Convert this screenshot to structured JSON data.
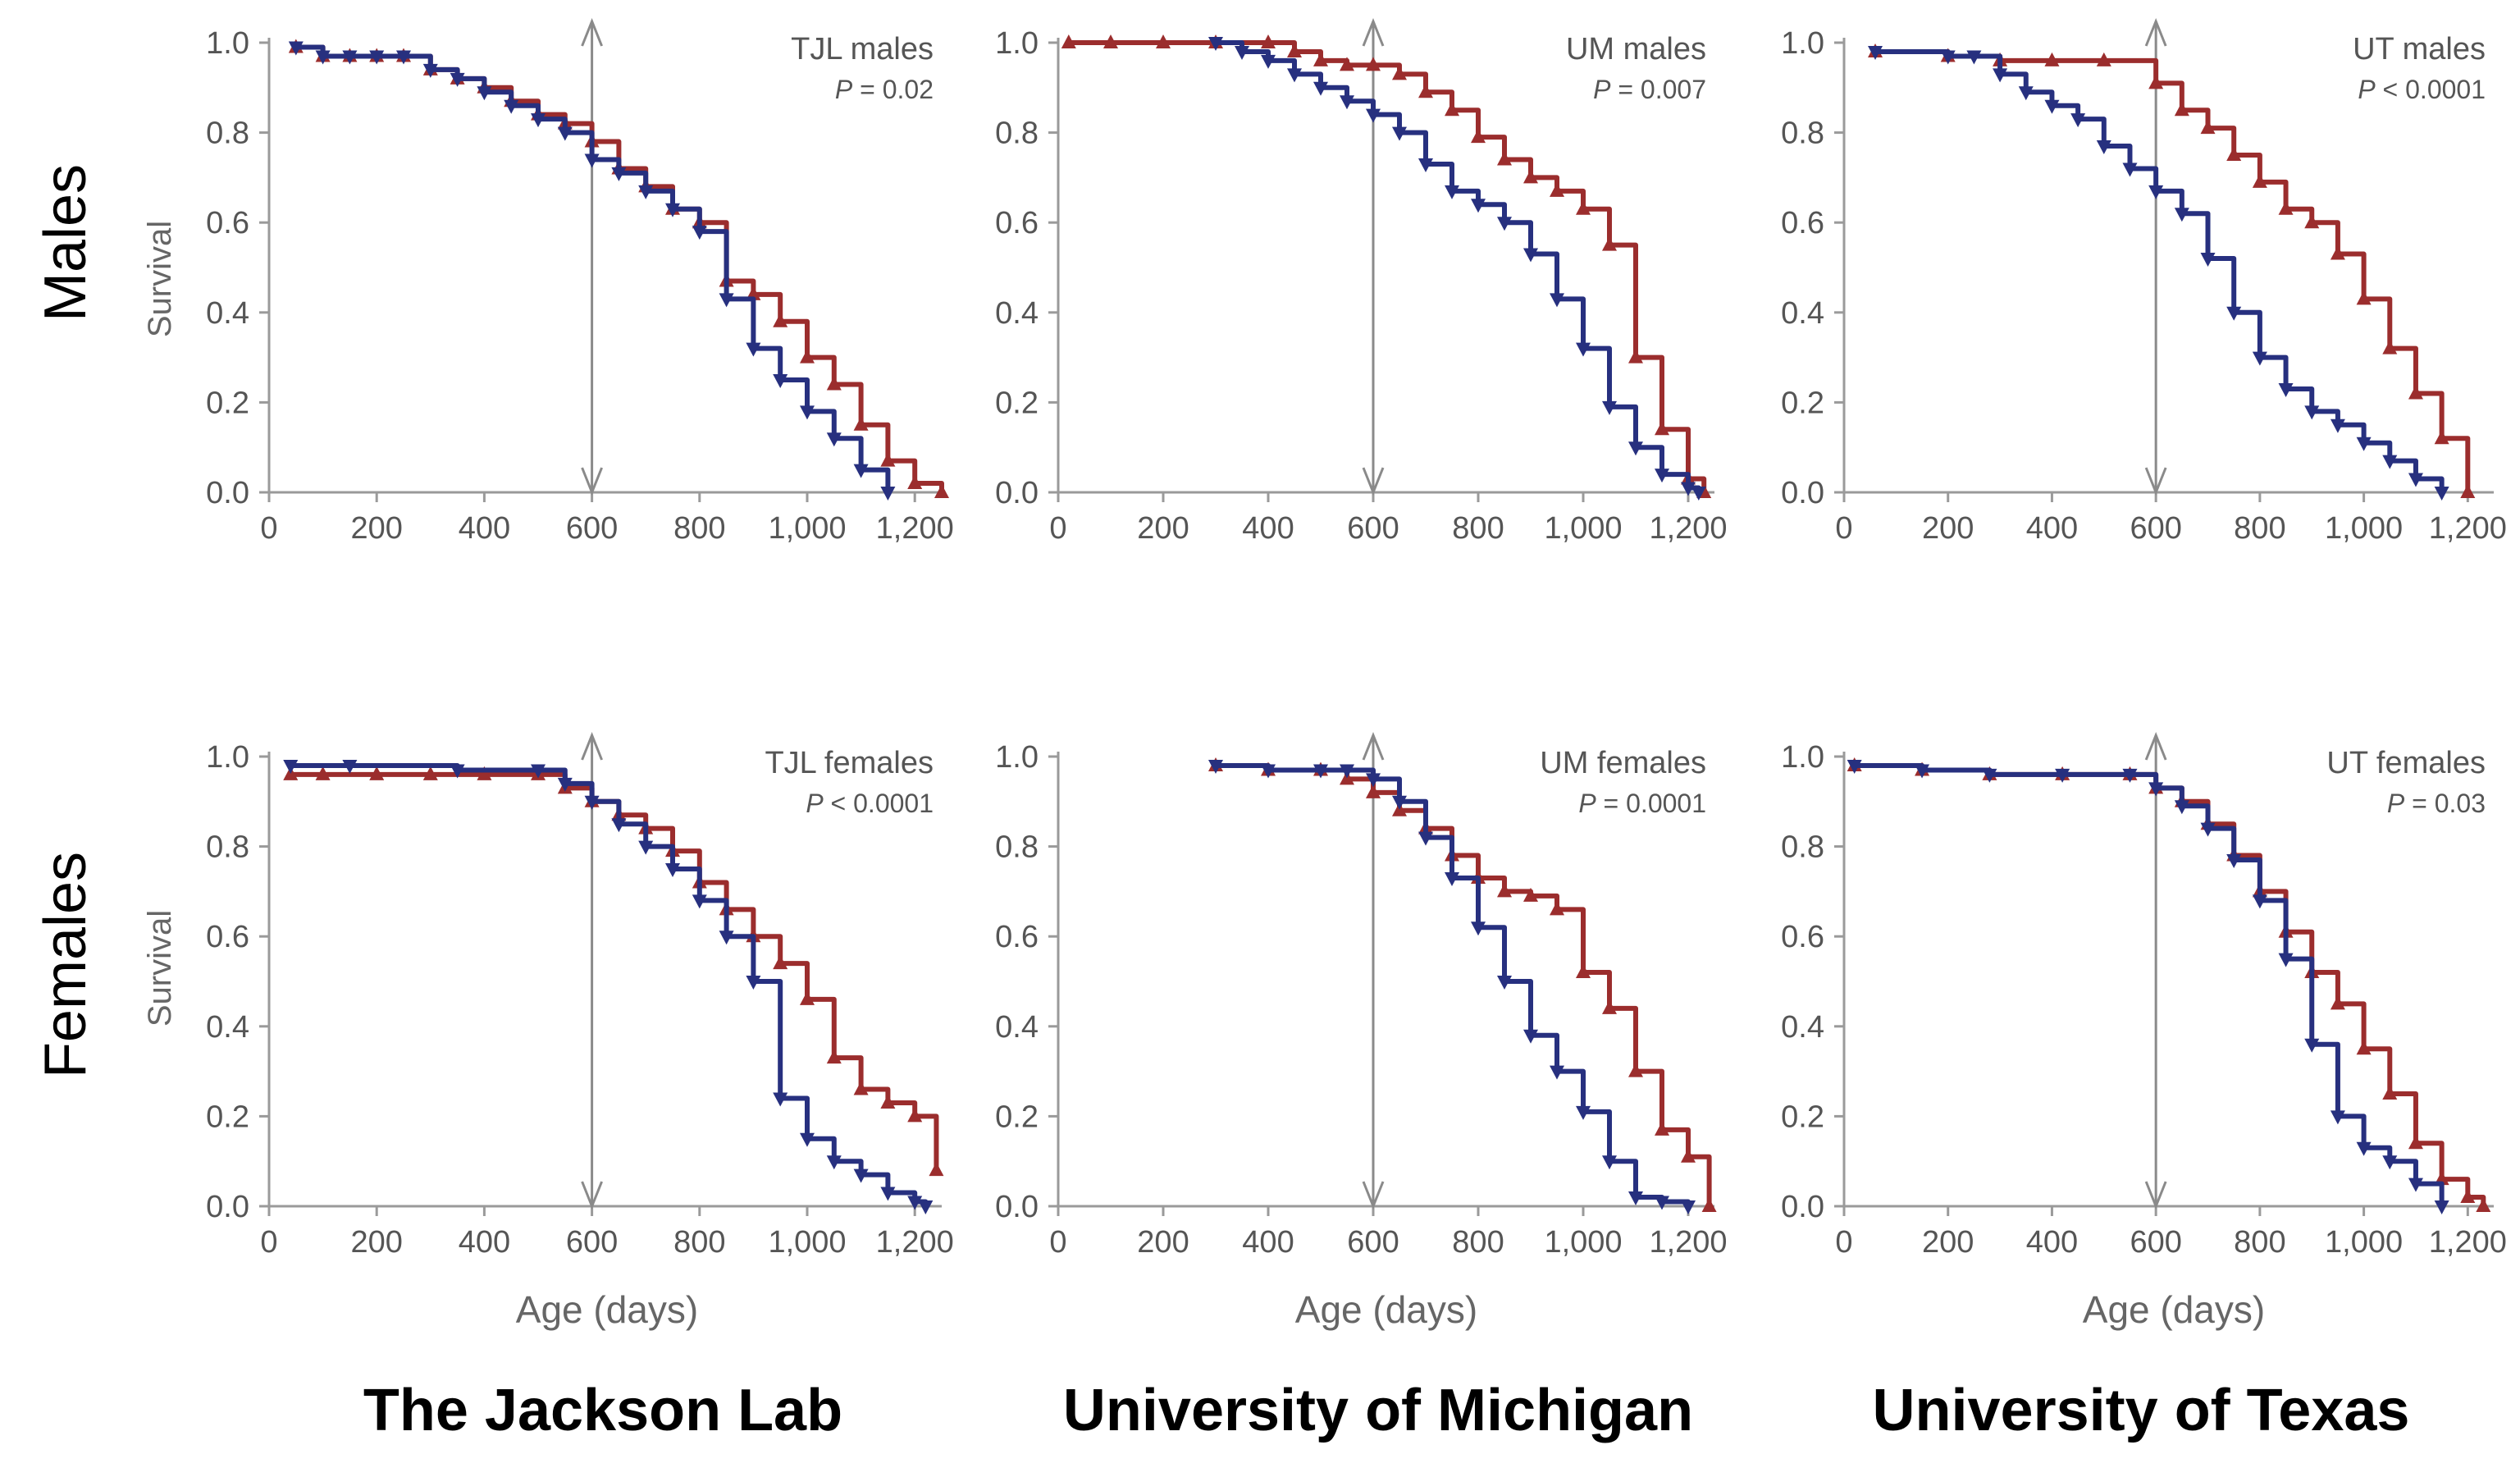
{
  "row_labels": [
    "Males",
    "Females"
  ],
  "column_labels": [
    "The Jackson Lab",
    "University of Michigan",
    "University of Texas"
  ],
  "x_axis_label": "Age (days)",
  "y_axis_label": "Survival",
  "colors": {
    "treated": "#9b2d2d",
    "control": "#27307f",
    "axis": "#9a9a9a",
    "marker_line": "#8a8a8a"
  },
  "chart_data": [
    {
      "type": "line",
      "title": "TJL males",
      "p_label": "P",
      "p_text": " = 0.02",
      "xlim": [
        0,
        1250
      ],
      "ylim": [
        0,
        1
      ],
      "x_marker": 600,
      "xticks": [
        "0",
        "200",
        "400",
        "600",
        "800",
        "1,000",
        "1,200"
      ],
      "yticks": [
        "0.0",
        "0.2",
        "0.4",
        "0.6",
        "0.8",
        "1.0"
      ],
      "series": [
        {
          "key": "treated",
          "x": [
            50,
            100,
            150,
            200,
            250,
            300,
            350,
            400,
            450,
            500,
            550,
            600,
            650,
            700,
            750,
            800,
            850,
            900,
            950,
            1000,
            1050,
            1100,
            1150,
            1200,
            1250
          ],
          "y": [
            0.99,
            0.97,
            0.97,
            0.97,
            0.97,
            0.94,
            0.92,
            0.9,
            0.87,
            0.84,
            0.82,
            0.78,
            0.72,
            0.68,
            0.63,
            0.6,
            0.47,
            0.44,
            0.38,
            0.3,
            0.24,
            0.15,
            0.07,
            0.02,
            0.0
          ]
        },
        {
          "key": "control",
          "x": [
            50,
            100,
            150,
            200,
            250,
            300,
            350,
            400,
            450,
            500,
            550,
            600,
            650,
            700,
            750,
            800,
            850,
            900,
            950,
            1000,
            1050,
            1100,
            1150
          ],
          "y": [
            0.99,
            0.97,
            0.97,
            0.97,
            0.97,
            0.94,
            0.92,
            0.89,
            0.86,
            0.83,
            0.8,
            0.74,
            0.71,
            0.67,
            0.63,
            0.58,
            0.43,
            0.32,
            0.25,
            0.18,
            0.12,
            0.05,
            0.0
          ]
        }
      ]
    },
    {
      "type": "line",
      "title": "UM males",
      "p_label": "P",
      "p_text": " = 0.007",
      "xlim": [
        0,
        1250
      ],
      "ylim": [
        0,
        1
      ],
      "x_marker": 600,
      "xticks": [
        "0",
        "200",
        "400",
        "600",
        "800",
        "1,000",
        "1,200"
      ],
      "yticks": [
        "0.0",
        "0.2",
        "0.4",
        "0.6",
        "0.8",
        "1.0"
      ],
      "series": [
        {
          "key": "treated",
          "x": [
            20,
            100,
            200,
            300,
            400,
            450,
            500,
            550,
            600,
            650,
            700,
            750,
            800,
            850,
            900,
            950,
            1000,
            1050,
            1100,
            1150,
            1200,
            1230
          ],
          "y": [
            1.0,
            1.0,
            1.0,
            1.0,
            1.0,
            0.98,
            0.96,
            0.95,
            0.95,
            0.93,
            0.89,
            0.85,
            0.79,
            0.74,
            0.7,
            0.67,
            0.63,
            0.55,
            0.3,
            0.14,
            0.03,
            0.0
          ]
        },
        {
          "key": "control",
          "x": [
            300,
            350,
            400,
            450,
            500,
            550,
            600,
            650,
            700,
            750,
            800,
            850,
            900,
            950,
            1000,
            1050,
            1100,
            1150,
            1200,
            1220
          ],
          "y": [
            1.0,
            0.98,
            0.96,
            0.93,
            0.9,
            0.87,
            0.84,
            0.8,
            0.73,
            0.67,
            0.64,
            0.6,
            0.53,
            0.43,
            0.32,
            0.19,
            0.1,
            0.04,
            0.01,
            0.0
          ]
        }
      ]
    },
    {
      "type": "line",
      "title": "UT males",
      "p_label": "P",
      "p_text": " < 0.0001",
      "xlim": [
        0,
        1250
      ],
      "ylim": [
        0,
        1
      ],
      "x_marker": 600,
      "xticks": [
        "0",
        "200",
        "400",
        "600",
        "800",
        "1,000",
        "1,200"
      ],
      "yticks": [
        "0.0",
        "0.2",
        "0.4",
        "0.6",
        "0.8",
        "1.0"
      ],
      "series": [
        {
          "key": "treated",
          "x": [
            60,
            200,
            300,
            400,
            500,
            600,
            650,
            700,
            750,
            800,
            850,
            900,
            950,
            1000,
            1050,
            1100,
            1150,
            1200
          ],
          "y": [
            0.98,
            0.97,
            0.96,
            0.96,
            0.96,
            0.91,
            0.85,
            0.81,
            0.75,
            0.69,
            0.63,
            0.6,
            0.53,
            0.43,
            0.32,
            0.22,
            0.12,
            0.0
          ]
        },
        {
          "key": "control",
          "x": [
            60,
            200,
            250,
            300,
            350,
            400,
            450,
            500,
            550,
            600,
            650,
            700,
            750,
            800,
            850,
            900,
            950,
            1000,
            1050,
            1100,
            1150
          ],
          "y": [
            0.98,
            0.97,
            0.97,
            0.93,
            0.89,
            0.86,
            0.83,
            0.77,
            0.72,
            0.67,
            0.62,
            0.52,
            0.4,
            0.3,
            0.23,
            0.18,
            0.15,
            0.11,
            0.07,
            0.03,
            0.0
          ]
        }
      ]
    },
    {
      "type": "line",
      "title": "TJL females",
      "p_label": "P",
      "p_text": " < 0.0001",
      "xlim": [
        0,
        1250
      ],
      "ylim": [
        0,
        1
      ],
      "x_marker": 600,
      "xticks": [
        "0",
        "200",
        "400",
        "600",
        "800",
        "1,000",
        "1,200"
      ],
      "yticks": [
        "0.0",
        "0.2",
        "0.4",
        "0.6",
        "0.8",
        "1.0"
      ],
      "series": [
        {
          "key": "treated",
          "x": [
            40,
            100,
            200,
            300,
            400,
            500,
            550,
            600,
            650,
            700,
            750,
            800,
            850,
            900,
            950,
            1000,
            1050,
            1100,
            1150,
            1200,
            1240
          ],
          "y": [
            0.96,
            0.96,
            0.96,
            0.96,
            0.96,
            0.96,
            0.93,
            0.9,
            0.87,
            0.84,
            0.79,
            0.72,
            0.66,
            0.6,
            0.54,
            0.46,
            0.33,
            0.26,
            0.23,
            0.2,
            0.08
          ]
        },
        {
          "key": "control",
          "x": [
            40,
            150,
            350,
            500,
            550,
            600,
            650,
            700,
            750,
            800,
            850,
            900,
            950,
            1000,
            1050,
            1100,
            1150,
            1200,
            1220
          ],
          "y": [
            0.98,
            0.98,
            0.97,
            0.97,
            0.94,
            0.9,
            0.85,
            0.8,
            0.75,
            0.68,
            0.6,
            0.5,
            0.24,
            0.15,
            0.1,
            0.07,
            0.03,
            0.01,
            0.0
          ]
        }
      ]
    },
    {
      "type": "line",
      "title": "UM females",
      "p_label": "P",
      "p_text": " = 0.0001",
      "xlim": [
        0,
        1250
      ],
      "ylim": [
        0,
        1
      ],
      "x_marker": 600,
      "xticks": [
        "0",
        "200",
        "400",
        "600",
        "800",
        "1,000",
        "1,200"
      ],
      "yticks": [
        "0.0",
        "0.2",
        "0.4",
        "0.6",
        "0.8",
        "1.0"
      ],
      "series": [
        {
          "key": "treated",
          "x": [
            300,
            400,
            500,
            550,
            600,
            650,
            700,
            750,
            800,
            850,
            900,
            950,
            1000,
            1050,
            1100,
            1150,
            1200,
            1240
          ],
          "y": [
            0.98,
            0.97,
            0.97,
            0.95,
            0.92,
            0.88,
            0.84,
            0.78,
            0.73,
            0.7,
            0.69,
            0.66,
            0.52,
            0.44,
            0.3,
            0.17,
            0.11,
            0.0
          ]
        },
        {
          "key": "control",
          "x": [
            300,
            400,
            500,
            550,
            600,
            650,
            700,
            750,
            800,
            850,
            900,
            950,
            1000,
            1050,
            1100,
            1150,
            1200
          ],
          "y": [
            0.98,
            0.97,
            0.97,
            0.97,
            0.95,
            0.9,
            0.82,
            0.73,
            0.62,
            0.5,
            0.38,
            0.3,
            0.21,
            0.1,
            0.02,
            0.01,
            0.0
          ]
        }
      ]
    },
    {
      "type": "line",
      "title": "UT females",
      "p_label": "P",
      "p_text": " = 0.03",
      "xlim": [
        0,
        1250
      ],
      "ylim": [
        0,
        1
      ],
      "x_marker": 600,
      "xticks": [
        "0",
        "200",
        "400",
        "600",
        "800",
        "1,000",
        "1,200"
      ],
      "yticks": [
        "0.0",
        "0.2",
        "0.4",
        "0.6",
        "0.8",
        "1.0"
      ],
      "series": [
        {
          "key": "treated",
          "x": [
            20,
            150,
            280,
            420,
            550,
            600,
            650,
            700,
            750,
            800,
            850,
            900,
            950,
            1000,
            1050,
            1100,
            1150,
            1200,
            1230
          ],
          "y": [
            0.98,
            0.97,
            0.96,
            0.96,
            0.96,
            0.93,
            0.9,
            0.85,
            0.78,
            0.7,
            0.61,
            0.52,
            0.45,
            0.35,
            0.25,
            0.14,
            0.06,
            0.02,
            0.0
          ]
        },
        {
          "key": "control",
          "x": [
            20,
            150,
            280,
            420,
            550,
            600,
            650,
            700,
            750,
            800,
            850,
            900,
            950,
            1000,
            1050,
            1100,
            1150
          ],
          "y": [
            0.98,
            0.97,
            0.96,
            0.96,
            0.96,
            0.93,
            0.89,
            0.84,
            0.77,
            0.68,
            0.55,
            0.36,
            0.2,
            0.13,
            0.1,
            0.05,
            0.0
          ]
        }
      ]
    }
  ]
}
